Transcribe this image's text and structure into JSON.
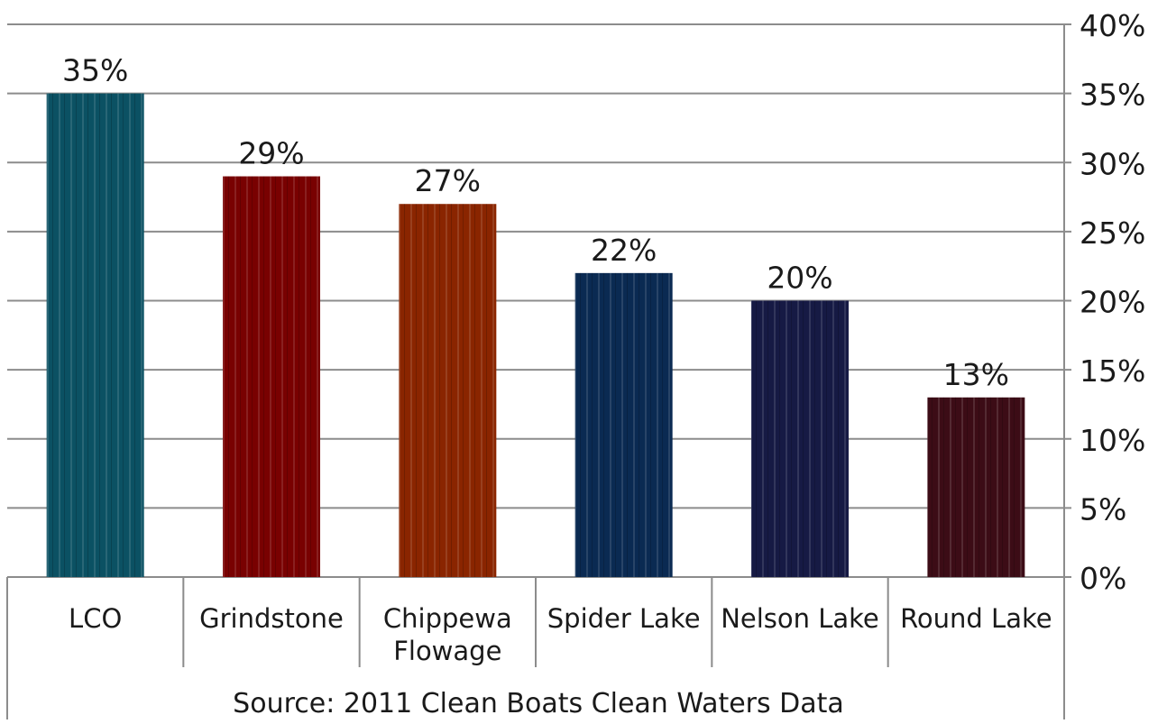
{
  "chart_data": {
    "type": "bar",
    "categories": [
      "LCO",
      "Grindstone",
      "Chippewa Flowage",
      "Spider Lake",
      "Nelson Lake",
      "Round Lake"
    ],
    "category_lines": [
      [
        "LCO"
      ],
      [
        "Grindstone"
      ],
      [
        "Chippewa",
        "Flowage"
      ],
      [
        "Spider Lake"
      ],
      [
        "Nelson Lake"
      ],
      [
        "Round Lake"
      ]
    ],
    "values": [
      35,
      29,
      27,
      22,
      20,
      13
    ],
    "value_labels": [
      "35%",
      "29%",
      "27%",
      "22%",
      "20%",
      "13%"
    ],
    "bar_colors": [
      "#0b5163",
      "#790101",
      "#8a2500",
      "#0a2a52",
      "#161a44",
      "#3c0c16"
    ],
    "ylim": [
      0,
      40
    ],
    "y_ticks": [
      0,
      5,
      10,
      15,
      20,
      25,
      30,
      35,
      40
    ],
    "y_tick_labels": [
      "0%",
      "5%",
      "10%",
      "15%",
      "20%",
      "25%",
      "30%",
      "35%",
      "40%"
    ],
    "y_axis_side": "right",
    "grid": true,
    "source_note": "Source: 2011 Clean Boats Clean Waters Data"
  }
}
